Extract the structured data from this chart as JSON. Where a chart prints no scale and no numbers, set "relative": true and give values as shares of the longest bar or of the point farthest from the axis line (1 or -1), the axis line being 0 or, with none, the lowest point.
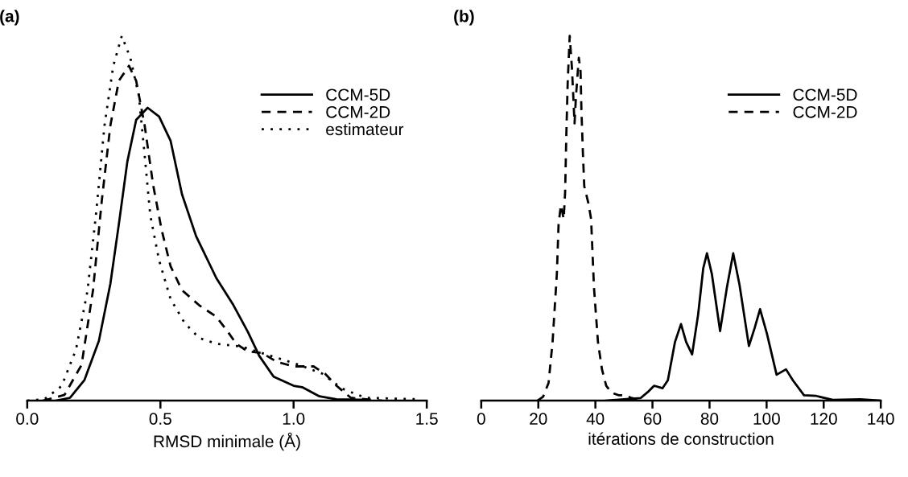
{
  "chart_data": [
    {
      "type": "line",
      "title": "(a)",
      "xlabel": "RMSD minimale (Å)",
      "relative": true,
      "xlim": [
        0,
        1.5
      ],
      "xticks": [
        {
          "value": 0,
          "label": "0.0"
        },
        0.5,
        {
          "value": 1,
          "label": "1.0"
        },
        1.5
      ],
      "legend": "top right",
      "grid": false,
      "series": [
        {
          "name": "CCM-5D",
          "color": "#000000",
          "line_style": "solid",
          "x": [
            0.108,
            0.161,
            0.215,
            0.269,
            0.312,
            0.344,
            0.376,
            0.409,
            0.452,
            0.495,
            0.538,
            0.581,
            0.634,
            0.71,
            0.774,
            0.828,
            0.871,
            0.925,
            1.0,
            1.032,
            1.097,
            1.161,
            1.28
          ],
          "values": [
            0,
            0.008,
            0.057,
            0.164,
            0.32,
            0.484,
            0.656,
            0.77,
            0.803,
            0.779,
            0.713,
            0.566,
            0.451,
            0.336,
            0.262,
            0.189,
            0.123,
            0.066,
            0.041,
            0.037,
            0.012,
            0.004,
            0.002
          ]
        },
        {
          "name": "CCM-2D",
          "color": "#000000",
          "line_style": "dashed",
          "x": [
            0.059,
            0.14,
            0.204,
            0.247,
            0.28,
            0.312,
            0.344,
            0.382,
            0.409,
            0.441,
            0.473,
            0.505,
            0.538,
            0.581,
            0.645,
            0.71,
            0.753,
            0.785,
            0.828,
            0.882,
            0.935,
            1.0,
            1.075,
            1.118,
            1.161,
            1.215,
            1.333
          ],
          "values": [
            0,
            0.016,
            0.098,
            0.303,
            0.549,
            0.754,
            0.877,
            0.918,
            0.877,
            0.754,
            0.59,
            0.467,
            0.369,
            0.303,
            0.262,
            0.23,
            0.189,
            0.156,
            0.135,
            0.131,
            0.107,
            0.094,
            0.094,
            0.074,
            0.041,
            0.008,
            0
          ]
        },
        {
          "name": "estimateur",
          "color": "#000000",
          "line_style": "dotted",
          "x": [
            0.0,
            0.065,
            0.129,
            0.183,
            0.226,
            0.258,
            0.29,
            0.323,
            0.355,
            0.387,
            0.419,
            0.441,
            0.462,
            0.495,
            0.538,
            0.591,
            0.645,
            0.71,
            0.806,
            0.914,
            1.022,
            1.108,
            1.183,
            1.269,
            1.462
          ],
          "values": [
            0,
            0.004,
            0.04,
            0.14,
            0.3,
            0.51,
            0.754,
            0.918,
            1.0,
            0.94,
            0.836,
            0.672,
            0.508,
            0.385,
            0.279,
            0.213,
            0.172,
            0.156,
            0.148,
            0.123,
            0.098,
            0.074,
            0.033,
            0.008,
            0.004
          ]
        }
      ]
    },
    {
      "type": "line",
      "title": "(b)",
      "xlabel": "itérations de construction",
      "relative": true,
      "xlim": [
        0,
        140
      ],
      "xticks": [
        0,
        20,
        40,
        60,
        80,
        100,
        120,
        140
      ],
      "legend": "top right",
      "grid": false,
      "series": [
        {
          "name": "CCM-5D",
          "color": "#000000",
          "line_style": "solid",
          "x": [
            43.8,
            50,
            55.8,
            58.7,
            60.6,
            63.5,
            65.4,
            67.9,
            70.0,
            71.8,
            73.9,
            76.0,
            77.8,
            79.1,
            80.8,
            83.7,
            86.1,
            88.3,
            90.5,
            93.8,
            95.8,
            97.7,
            100.1,
            103.5,
            106.8,
            109.2,
            113.1,
            117.4,
            123.2,
            132.8,
            140
          ],
          "values": [
            0,
            0.004,
            0.007,
            0.026,
            0.041,
            0.034,
            0.056,
            0.161,
            0.21,
            0.161,
            0.127,
            0.236,
            0.363,
            0.404,
            0.348,
            0.191,
            0.311,
            0.404,
            0.318,
            0.15,
            0.199,
            0.251,
            0.184,
            0.071,
            0.086,
            0.056,
            0.015,
            0.013,
            0.002,
            0.004,
            0
          ]
        },
        {
          "name": "CCM-2D",
          "color": "#000000",
          "line_style": "dashed",
          "x": [
            19.7,
            21.7,
            23.6,
            25.0,
            26.5,
            27.1,
            27.9,
            28.9,
            29.4,
            29.8,
            30.3,
            31.0,
            31.8,
            32.7,
            33.2,
            34.2,
            34.8,
            35.1,
            35.6,
            36.1,
            37.5,
            38.5,
            39.5,
            40.9,
            42.3,
            43.8,
            45.7,
            48.1,
            50.0,
            52.9,
            56.8
          ],
          "values": [
            0,
            0.011,
            0.049,
            0.161,
            0.348,
            0.483,
            0.536,
            0.498,
            0.573,
            0.723,
            0.873,
            1.0,
            0.91,
            0.76,
            0.835,
            0.94,
            0.903,
            0.798,
            0.685,
            0.588,
            0.543,
            0.498,
            0.311,
            0.161,
            0.086,
            0.041,
            0.022,
            0.015,
            0.015,
            0.007,
            0
          ]
        }
      ]
    }
  ]
}
